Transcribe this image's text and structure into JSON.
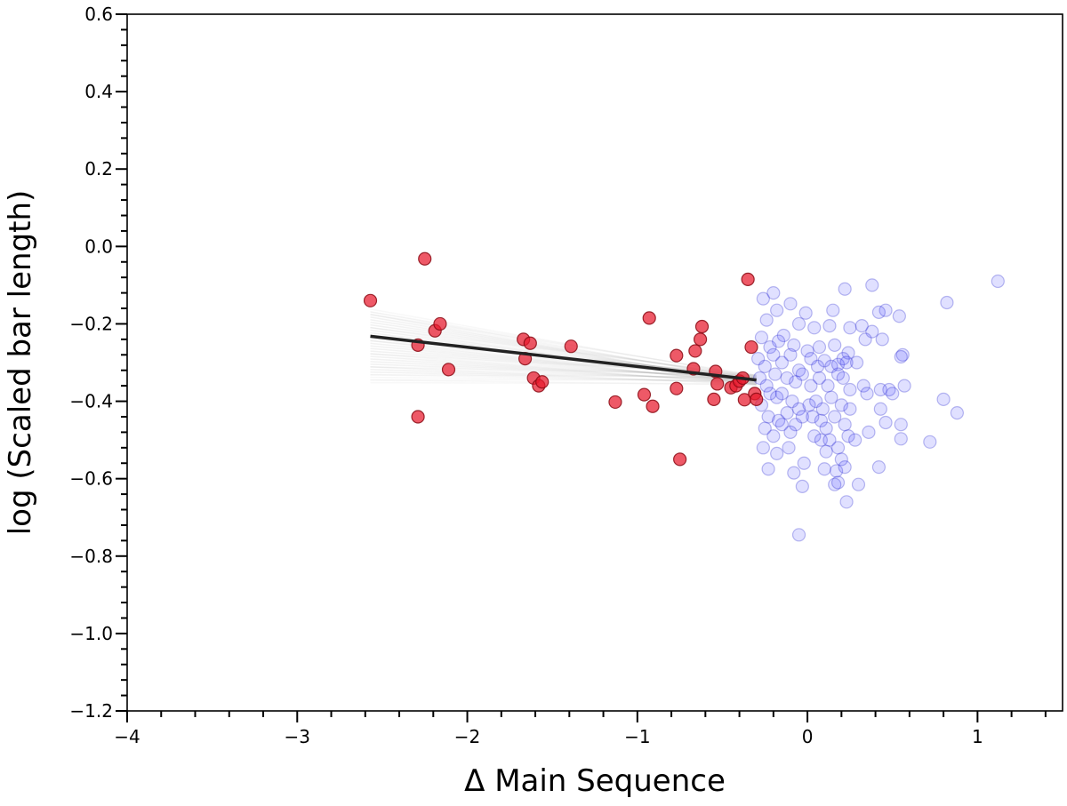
{
  "chart_data": {
    "type": "scatter",
    "title": "",
    "xlabel": "Δ Main Sequence",
    "ylabel": "log (Scaled bar length)",
    "xlim": [
      -4,
      1.5
    ],
    "ylim": [
      -1.2,
      0.6
    ],
    "x_major_ticks": [
      -4,
      -3,
      -2,
      -1,
      0,
      1
    ],
    "x_tick_labels": [
      "−4",
      "−3",
      "−2",
      "−1",
      "0",
      "1"
    ],
    "y_major_ticks": [
      -1.2,
      -1.0,
      -0.8,
      -0.6,
      -0.4,
      -0.2,
      0.0,
      0.2,
      0.4,
      0.6
    ],
    "y_tick_labels": [
      "−1.2",
      "−1.0",
      "−0.8",
      "−0.6",
      "−0.4",
      "−0.2",
      "0.0",
      "0.2",
      "0.4",
      "0.6"
    ],
    "x_minor_step": 0.2,
    "y_minor_step": 0.04,
    "grid": false,
    "colors": {
      "red_fill": "#e8192c",
      "red_edge": "#8b0a14",
      "blue_fill": "#3d3dff",
      "blue_edge": "#2222cc",
      "fit_line": "#222222",
      "posterior_lines": "#888888"
    },
    "fit_line": {
      "x": [
        -2.57,
        -0.3
      ],
      "y": [
        -0.232,
        -0.345
      ]
    },
    "posterior_band": {
      "x_range": [
        -2.57,
        -0.3
      ],
      "n_lines": 60,
      "slope_range": [
        -0.08,
        0.0
      ],
      "anchor_x": -0.3,
      "anchor_y": -0.345
    },
    "series": [
      {
        "group": "below-main-sequence",
        "style": "red",
        "points": [
          [
            -2.57,
            -0.14
          ],
          [
            -2.25,
            -0.032
          ],
          [
            -2.29,
            -0.255
          ],
          [
            -2.29,
            -0.44
          ],
          [
            -2.19,
            -0.218
          ],
          [
            -2.16,
            -0.2
          ],
          [
            -2.11,
            -0.318
          ],
          [
            -1.67,
            -0.24
          ],
          [
            -1.66,
            -0.29
          ],
          [
            -1.63,
            -0.25
          ],
          [
            -1.61,
            -0.34
          ],
          [
            -1.58,
            -0.36
          ],
          [
            -1.56,
            -0.35
          ],
          [
            -1.39,
            -0.258
          ],
          [
            -1.13,
            -0.402
          ],
          [
            -0.96,
            -0.383
          ],
          [
            -0.93,
            -0.185
          ],
          [
            -0.91,
            -0.413
          ],
          [
            -0.77,
            -0.282
          ],
          [
            -0.77,
            -0.367
          ],
          [
            -0.75,
            -0.55
          ],
          [
            -0.67,
            -0.316
          ],
          [
            -0.66,
            -0.27
          ],
          [
            -0.63,
            -0.24
          ],
          [
            -0.62,
            -0.207
          ],
          [
            -0.55,
            -0.395
          ],
          [
            -0.54,
            -0.323
          ],
          [
            -0.53,
            -0.355
          ],
          [
            -0.45,
            -0.365
          ],
          [
            -0.42,
            -0.36
          ],
          [
            -0.4,
            -0.348
          ],
          [
            -0.38,
            -0.34
          ],
          [
            -0.37,
            -0.396
          ],
          [
            -0.35,
            -0.085
          ],
          [
            -0.33,
            -0.26
          ],
          [
            -0.31,
            -0.38
          ],
          [
            -0.3,
            -0.395
          ]
        ]
      },
      {
        "group": "on-main-sequence",
        "style": "blue",
        "points": [
          [
            -0.26,
            -0.135
          ],
          [
            -0.2,
            -0.12
          ],
          [
            -0.18,
            -0.165
          ],
          [
            -0.1,
            -0.148
          ],
          [
            -0.01,
            -0.172
          ],
          [
            0.15,
            -0.165
          ],
          [
            0.22,
            -0.11
          ],
          [
            0.38,
            -0.1
          ],
          [
            0.42,
            -0.17
          ],
          [
            0.46,
            -0.165
          ],
          [
            0.54,
            -0.18
          ],
          [
            0.82,
            -0.145
          ],
          [
            1.12,
            -0.09
          ],
          [
            -0.24,
            -0.19
          ],
          [
            -0.14,
            -0.23
          ],
          [
            -0.05,
            -0.2
          ],
          [
            0.04,
            -0.21
          ],
          [
            0.13,
            -0.205
          ],
          [
            0.25,
            -0.21
          ],
          [
            0.32,
            -0.205
          ],
          [
            0.38,
            -0.22
          ],
          [
            0.44,
            -0.24
          ],
          [
            -0.27,
            -0.235
          ],
          [
            -0.22,
            -0.26
          ],
          [
            -0.17,
            -0.245
          ],
          [
            -0.08,
            -0.255
          ],
          [
            0.0,
            -0.27
          ],
          [
            0.07,
            -0.26
          ],
          [
            0.16,
            -0.255
          ],
          [
            0.24,
            -0.275
          ],
          [
            0.34,
            -0.24
          ],
          [
            0.56,
            -0.28
          ],
          [
            0.55,
            -0.285
          ],
          [
            -0.29,
            -0.29
          ],
          [
            -0.25,
            -0.31
          ],
          [
            -0.2,
            -0.28
          ],
          [
            -0.15,
            -0.3
          ],
          [
            -0.1,
            -0.28
          ],
          [
            -0.05,
            -0.32
          ],
          [
            0.02,
            -0.29
          ],
          [
            0.06,
            -0.31
          ],
          [
            0.1,
            -0.295
          ],
          [
            0.14,
            -0.31
          ],
          [
            0.18,
            -0.305
          ],
          [
            0.21,
            -0.29
          ],
          [
            0.23,
            -0.3
          ],
          [
            0.29,
            -0.3
          ],
          [
            -0.28,
            -0.34
          ],
          [
            -0.24,
            -0.36
          ],
          [
            -0.19,
            -0.33
          ],
          [
            -0.12,
            -0.34
          ],
          [
            -0.07,
            -0.35
          ],
          [
            -0.03,
            -0.33
          ],
          [
            0.02,
            -0.36
          ],
          [
            0.07,
            -0.34
          ],
          [
            0.12,
            -0.36
          ],
          [
            0.18,
            -0.33
          ],
          [
            0.21,
            -0.34
          ],
          [
            0.25,
            -0.37
          ],
          [
            0.33,
            -0.36
          ],
          [
            0.35,
            -0.38
          ],
          [
            0.43,
            -0.37
          ],
          [
            0.48,
            -0.37
          ],
          [
            0.5,
            -0.38
          ],
          [
            0.57,
            -0.36
          ],
          [
            -0.22,
            -0.38
          ],
          [
            -0.18,
            -0.39
          ],
          [
            -0.15,
            -0.38
          ],
          [
            -0.09,
            -0.4
          ],
          [
            -0.05,
            -0.42
          ],
          [
            0.01,
            -0.41
          ],
          [
            0.05,
            -0.4
          ],
          [
            0.09,
            -0.42
          ],
          [
            0.14,
            -0.39
          ],
          [
            0.2,
            -0.41
          ],
          [
            0.25,
            -0.42
          ],
          [
            -0.27,
            -0.41
          ],
          [
            -0.23,
            -0.44
          ],
          [
            -0.17,
            -0.45
          ],
          [
            -0.12,
            -0.43
          ],
          [
            -0.07,
            -0.46
          ],
          [
            -0.03,
            -0.44
          ],
          [
            0.03,
            -0.44
          ],
          [
            0.08,
            -0.45
          ],
          [
            0.11,
            -0.47
          ],
          [
            0.16,
            -0.44
          ],
          [
            0.22,
            -0.46
          ],
          [
            0.43,
            -0.42
          ],
          [
            0.46,
            -0.455
          ],
          [
            0.55,
            -0.46
          ],
          [
            0.8,
            -0.395
          ],
          [
            0.88,
            -0.43
          ],
          [
            -0.25,
            -0.47
          ],
          [
            -0.2,
            -0.49
          ],
          [
            -0.15,
            -0.46
          ],
          [
            -0.1,
            -0.48
          ],
          [
            0.04,
            -0.49
          ],
          [
            0.08,
            -0.5
          ],
          [
            0.13,
            -0.5
          ],
          [
            0.18,
            -0.52
          ],
          [
            0.24,
            -0.49
          ],
          [
            0.28,
            -0.5
          ],
          [
            0.36,
            -0.48
          ],
          [
            0.55,
            -0.497
          ],
          [
            0.72,
            -0.505
          ],
          [
            -0.26,
            -0.52
          ],
          [
            -0.18,
            -0.535
          ],
          [
            -0.11,
            -0.52
          ],
          [
            0.11,
            -0.53
          ],
          [
            0.2,
            -0.55
          ],
          [
            -0.23,
            -0.575
          ],
          [
            -0.08,
            -0.585
          ],
          [
            0.1,
            -0.575
          ],
          [
            0.17,
            -0.58
          ],
          [
            0.22,
            -0.57
          ],
          [
            0.42,
            -0.57
          ],
          [
            -0.02,
            -0.56
          ],
          [
            0.16,
            -0.615
          ],
          [
            0.18,
            -0.61
          ],
          [
            0.3,
            -0.615
          ],
          [
            -0.03,
            -0.62
          ],
          [
            0.23,
            -0.66
          ],
          [
            -0.05,
            -0.745
          ]
        ]
      }
    ]
  }
}
